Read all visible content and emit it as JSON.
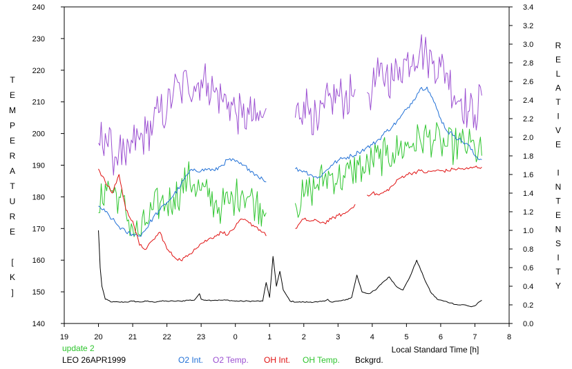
{
  "chart_data": {
    "type": "line",
    "xlabel": "Local Standard Time [h]",
    "ylabel": "TEMPERATURE [K]",
    "y2label": "RELATIVE INTENSITY",
    "x_ticks": [
      {
        "value": 19,
        "label": "19"
      },
      {
        "value": 20,
        "label": "20"
      },
      {
        "value": 21,
        "label": "21"
      },
      {
        "value": 22,
        "label": "22"
      },
      {
        "value": 23,
        "label": "23"
      },
      {
        "value": 24,
        "label": "0"
      },
      {
        "value": 25,
        "label": "1"
      },
      {
        "value": 26,
        "label": "2"
      },
      {
        "value": 27,
        "label": "3"
      },
      {
        "value": 28,
        "label": "4"
      },
      {
        "value": 29,
        "label": "5"
      },
      {
        "value": 30,
        "label": "6"
      },
      {
        "value": 31,
        "label": "7"
      },
      {
        "value": 32,
        "label": "8"
      }
    ],
    "xlim": [
      19,
      32
    ],
    "ylim": [
      140,
      240
    ],
    "y2lim": [
      0,
      3.4
    ],
    "y_ticks": [
      "140",
      "150",
      "160",
      "170",
      "180",
      "190",
      "200",
      "210",
      "220",
      "230",
      "240"
    ],
    "y2_ticks": [
      "0.0",
      "0.2",
      "0.4",
      "0.6",
      "0.8",
      "1.0",
      "1.2",
      "1.4",
      "1.6",
      "1.8",
      "2.0",
      "2.2",
      "2.4",
      "2.6",
      "2.8",
      "3.0",
      "3.2",
      "3.4"
    ],
    "grid": false,
    "legend_position": "bottom",
    "annotations": {
      "update": "update 2",
      "site": "LEO 26APR1999"
    },
    "series": [
      {
        "name": "O2 Int.",
        "axis": "right",
        "color": "#1f6fd6",
        "x": [
          20.0,
          20.2,
          20.4,
          20.6,
          20.8,
          21.0,
          21.2,
          21.4,
          21.6,
          21.8,
          22.0,
          22.2,
          22.4,
          22.6,
          22.8,
          23.0,
          23.2,
          23.4,
          23.6,
          23.8,
          24.0,
          24.2,
          24.4,
          24.6,
          24.8,
          24.9,
          null,
          25.75,
          26.0,
          26.2,
          26.4,
          26.6,
          26.8,
          27.0,
          27.2,
          27.4,
          27.6,
          27.8,
          28.0,
          28.2,
          28.4,
          28.6,
          28.8,
          29.0,
          29.2,
          29.4,
          29.6,
          29.8,
          30.0,
          30.2,
          30.4,
          30.6,
          30.8,
          31.0,
          31.2
        ],
        "y": [
          1.26,
          1.2,
          1.12,
          1.04,
          0.98,
          0.96,
          0.94,
          1.02,
          1.14,
          1.22,
          1.3,
          1.38,
          1.48,
          1.6,
          1.66,
          1.64,
          1.66,
          1.64,
          1.7,
          1.76,
          1.74,
          1.7,
          1.66,
          1.6,
          1.55,
          1.52,
          null,
          1.66,
          1.64,
          1.6,
          1.56,
          1.62,
          1.7,
          1.75,
          1.78,
          1.8,
          1.84,
          1.88,
          1.92,
          1.98,
          2.06,
          2.12,
          2.2,
          2.3,
          2.4,
          2.52,
          2.54,
          2.38,
          2.2,
          2.06,
          2.02,
          1.96,
          1.92,
          1.8,
          1.76
        ]
      },
      {
        "name": "O2 Temp.",
        "axis": "left",
        "color": "#9b4fd1",
        "x": [
          20.0,
          20.2,
          20.4,
          20.6,
          20.8,
          21.0,
          21.2,
          21.4,
          21.6,
          21.8,
          22.0,
          22.2,
          22.4,
          22.6,
          22.8,
          23.0,
          23.2,
          23.4,
          23.6,
          23.8,
          24.0,
          24.2,
          24.4,
          24.6,
          24.8,
          24.9,
          null,
          25.75,
          26.0,
          26.2,
          26.4,
          26.6,
          26.8,
          27.0,
          27.2,
          27.4,
          27.5,
          null,
          27.85,
          28.0,
          28.2,
          28.4,
          28.6,
          28.8,
          29.0,
          29.2,
          29.4,
          29.6,
          29.8,
          30.0,
          30.2,
          30.4,
          30.6,
          30.8,
          31.0,
          31.2
        ],
        "y": [
          197,
          200,
          193,
          195,
          190,
          197,
          198,
          200,
          203,
          207,
          207,
          214,
          213,
          217,
          215,
          217,
          216,
          213,
          211,
          210,
          207,
          205,
          206,
          204,
          205,
          208,
          null,
          205,
          210,
          208,
          201,
          208,
          211,
          212,
          211,
          212,
          214,
          null,
          213,
          214,
          218,
          219,
          217,
          221,
          223,
          225,
          227,
          224,
          223,
          221,
          219,
          212,
          211,
          207,
          206,
          212
        ]
      },
      {
        "name": "OH Int.",
        "axis": "right",
        "color": "#e01010",
        "x": [
          20.0,
          20.2,
          20.4,
          20.6,
          20.8,
          21.0,
          21.2,
          21.4,
          21.6,
          21.8,
          22.0,
          22.2,
          22.4,
          22.6,
          22.8,
          23.0,
          23.2,
          23.4,
          23.6,
          23.8,
          24.0,
          24.2,
          24.4,
          24.6,
          24.8,
          24.9,
          null,
          25.75,
          26.0,
          26.2,
          26.4,
          26.6,
          26.8,
          27.0,
          27.2,
          27.4,
          27.5,
          null,
          27.85,
          28.0,
          28.2,
          28.4,
          28.6,
          28.8,
          29.0,
          29.2,
          29.4,
          29.6,
          29.8,
          30.0,
          30.2,
          30.4,
          30.6,
          30.8,
          31.0,
          31.2
        ],
        "y": [
          1.66,
          1.52,
          1.4,
          1.6,
          1.22,
          1.1,
          0.84,
          0.8,
          0.9,
          0.98,
          0.8,
          0.72,
          0.68,
          0.72,
          0.8,
          0.86,
          0.9,
          0.94,
          0.98,
          0.96,
          1.04,
          1.12,
          1.08,
          1.04,
          0.98,
          0.94,
          null,
          1.02,
          1.12,
          1.1,
          1.1,
          1.08,
          1.12,
          1.16,
          1.18,
          1.24,
          1.28,
          null,
          1.38,
          1.4,
          1.38,
          1.42,
          1.48,
          1.56,
          1.6,
          1.62,
          1.64,
          1.62,
          1.64,
          1.64,
          1.64,
          1.66,
          1.66,
          1.66,
          1.68,
          1.68
        ]
      },
      {
        "name": "OH Temp.",
        "axis": "left",
        "color": "#2ec52e",
        "x": [
          20.0,
          20.2,
          20.4,
          20.6,
          20.8,
          21.0,
          21.2,
          21.4,
          21.6,
          21.8,
          22.0,
          22.2,
          22.4,
          22.6,
          22.8,
          23.0,
          23.2,
          23.4,
          23.6,
          23.8,
          24.0,
          24.2,
          24.4,
          24.6,
          24.8,
          24.9,
          null,
          25.75,
          26.0,
          26.2,
          26.4,
          26.6,
          26.8,
          27.0,
          27.2,
          27.4,
          27.6,
          27.8,
          28.0,
          28.2,
          28.4,
          28.6,
          28.8,
          29.0,
          29.2,
          29.4,
          29.6,
          29.8,
          30.0,
          30.2,
          30.4,
          30.6,
          30.8,
          31.0,
          31.2
        ],
        "y": [
          175,
          184,
          182,
          180,
          175,
          170,
          168,
          172,
          176,
          178,
          178,
          180,
          182,
          186,
          184,
          182,
          180,
          178,
          177,
          178,
          180,
          182,
          180,
          178,
          176,
          175,
          null,
          178,
          180,
          182,
          184,
          186,
          187,
          186,
          186,
          188,
          190,
          188,
          192,
          192,
          193,
          194,
          195,
          196,
          197,
          198,
          199,
          198,
          197,
          196,
          196,
          197,
          196,
          195,
          193
        ]
      },
      {
        "name": "Bckgrd.",
        "axis": "right",
        "color": "#000000",
        "x": [
          20.0,
          20.05,
          20.1,
          20.2,
          20.4,
          20.6,
          20.8,
          21.0,
          21.2,
          21.4,
          21.6,
          21.8,
          22.0,
          22.2,
          22.4,
          22.6,
          22.8,
          22.95,
          23.0,
          23.2,
          23.4,
          23.6,
          23.8,
          24.0,
          24.2,
          24.4,
          24.6,
          24.8,
          24.9,
          25.0,
          25.1,
          25.2,
          25.3,
          25.4,
          25.5,
          25.6,
          25.8,
          26.0,
          26.2,
          26.4,
          26.6,
          26.7,
          26.8,
          27.0,
          27.2,
          27.4,
          27.55,
          27.7,
          27.9,
          28.1,
          28.3,
          28.5,
          28.7,
          28.9,
          29.1,
          29.3,
          29.5,
          29.7,
          29.9,
          30.1,
          30.3,
          30.5,
          30.7,
          30.9,
          31.0,
          31.2
        ],
        "y": [
          1.0,
          0.6,
          0.4,
          0.26,
          0.23,
          0.23,
          0.23,
          0.24,
          0.23,
          0.24,
          0.23,
          0.24,
          0.24,
          0.24,
          0.24,
          0.25,
          0.25,
          0.32,
          0.26,
          0.25,
          0.25,
          0.25,
          0.25,
          0.24,
          0.24,
          0.24,
          0.24,
          0.24,
          0.44,
          0.28,
          0.72,
          0.4,
          0.56,
          0.36,
          0.3,
          0.24,
          0.23,
          0.23,
          0.23,
          0.23,
          0.24,
          0.26,
          0.23,
          0.24,
          0.25,
          0.28,
          0.52,
          0.34,
          0.32,
          0.36,
          0.44,
          0.5,
          0.4,
          0.36,
          0.5,
          0.68,
          0.5,
          0.34,
          0.26,
          0.24,
          0.22,
          0.2,
          0.2,
          0.18,
          0.19,
          0.25
        ]
      }
    ]
  }
}
